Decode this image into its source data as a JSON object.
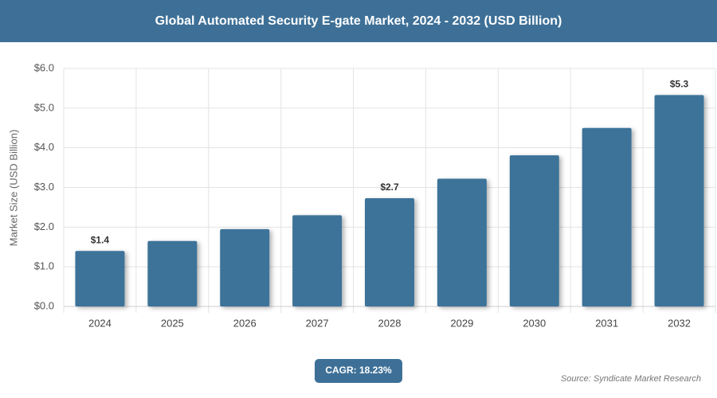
{
  "chart_data": {
    "type": "bar",
    "title": "Global Automated Security E-gate Market, 2024 - 2032 (USD Billion)",
    "y_label": "Market Size (USD Billion)",
    "categories": [
      "2024",
      "2025",
      "2026",
      "2027",
      "2028",
      "2029",
      "2030",
      "2031",
      "2032"
    ],
    "values": [
      1.4,
      1.65,
      1.95,
      2.3,
      2.73,
      3.22,
      3.81,
      4.5,
      5.33
    ],
    "value_labels": [
      "$1.4",
      null,
      null,
      null,
      "$2.7",
      null,
      null,
      null,
      "$5.3"
    ],
    "color": "#3e7399",
    "ylim": [
      0,
      6
    ],
    "yticks": [
      {
        "value": 0,
        "label": "$0.0"
      },
      {
        "value": 1,
        "label": "$1.0"
      },
      {
        "value": 2,
        "label": "$2.0"
      },
      {
        "value": 3,
        "label": "$3.0"
      },
      {
        "value": 4,
        "label": "$4.0"
      },
      {
        "value": 5,
        "label": "$5.0"
      },
      {
        "value": 6,
        "label": "$6.0"
      }
    ],
    "grid": true,
    "cagr": "CAGR: 18.23%",
    "source": "Source: Syndicate Market Research"
  }
}
